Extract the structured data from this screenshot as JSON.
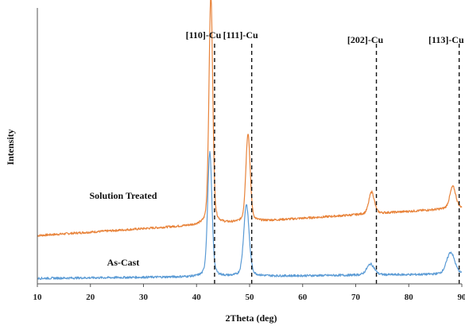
{
  "chart_data": {
    "type": "line",
    "title": "",
    "xlabel": "2Theta (deg)",
    "ylabel": "Intensity",
    "xlim": [
      10,
      90
    ],
    "xticks": [
      10,
      20,
      30,
      40,
      50,
      60,
      70,
      80,
      90
    ],
    "y_tick_labels_shown": false,
    "grid": false,
    "legend": "none",
    "reference_lines": [
      {
        "label": "[110]-Cu",
        "x": 43.4
      },
      {
        "label": "[111]-Cu",
        "x": 50.4
      },
      {
        "label": "[202]-Cu",
        "x": 73.9
      },
      {
        "label": "[113]-Cu",
        "x": 89.5
      }
    ],
    "series": [
      {
        "name": "Solution Treated",
        "color": "#E8833A",
        "baseline_start": 0.175,
        "baseline_end": 0.275,
        "peaks": [
          {
            "x": 42.7,
            "height": 0.83,
            "width": 0.35
          },
          {
            "x": 49.7,
            "height": 0.32,
            "width": 0.4
          },
          {
            "x": 73.0,
            "height": 0.08,
            "width": 0.5
          },
          {
            "x": 88.3,
            "height": 0.08,
            "width": 0.55
          }
        ]
      },
      {
        "name": "As-Cast",
        "color": "#5B9BD5",
        "baseline_start": 0.02,
        "baseline_end": 0.035,
        "peaks": [
          {
            "x": 42.5,
            "height": 0.45,
            "width": 0.4
          },
          {
            "x": 49.4,
            "height": 0.26,
            "width": 0.5
          },
          {
            "x": 72.8,
            "height": 0.04,
            "width": 0.7
          },
          {
            "x": 87.9,
            "height": 0.08,
            "width": 0.75
          }
        ]
      }
    ]
  }
}
